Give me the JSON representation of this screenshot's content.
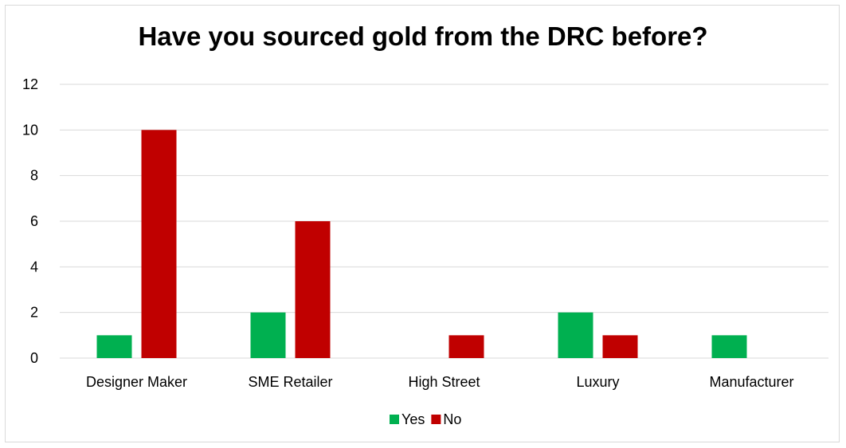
{
  "chart_data": {
    "type": "bar",
    "title": "Have you sourced gold from the DRC before?",
    "categories": [
      "Designer Maker",
      "SME Retailer",
      "High Street",
      "Luxury",
      "Manufacturer"
    ],
    "series": [
      {
        "name": "Yes",
        "color": "#00b050",
        "values": [
          1,
          2,
          0,
          2,
          1
        ]
      },
      {
        "name": "No",
        "color": "#c00000",
        "values": [
          10,
          6,
          1,
          1,
          0
        ]
      }
    ],
    "ylim": [
      0,
      12
    ],
    "yticks": [
      0,
      2,
      4,
      6,
      8,
      10,
      12
    ],
    "xlabel": "",
    "ylabel": "",
    "grid": true,
    "gridColor": "#d9d9d9",
    "legend": "bottom"
  }
}
